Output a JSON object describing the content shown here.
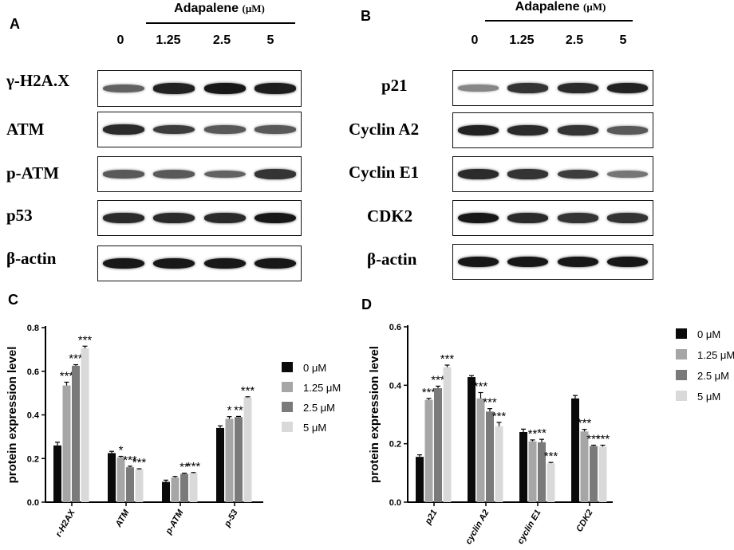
{
  "figure": {
    "panel_a": {
      "letter": "A",
      "treatment": "Adapalene",
      "unit": "(μM)",
      "concentrations": [
        "0",
        "1.25",
        "2.5",
        "5"
      ],
      "rows": [
        {
          "label": "γ-H2A.X",
          "intensity": [
            0.55,
            0.9,
            0.95,
            0.92
          ]
        },
        {
          "label": "ATM",
          "intensity": [
            0.85,
            0.75,
            0.6,
            0.6
          ]
        },
        {
          "label": "p-ATM",
          "intensity": [
            0.6,
            0.6,
            0.55,
            0.8
          ]
        },
        {
          "label": "p53",
          "intensity": [
            0.85,
            0.85,
            0.85,
            0.95
          ]
        },
        {
          "label": "β-actin",
          "intensity": [
            0.95,
            0.95,
            0.95,
            0.95
          ]
        }
      ]
    },
    "panel_b": {
      "letter": "B",
      "treatment": "Adapalene",
      "unit": "(μM)",
      "concentrations": [
        "0",
        "1.25",
        "2.5",
        "5"
      ],
      "rows": [
        {
          "label": "p21",
          "intensity": [
            0.35,
            0.8,
            0.85,
            0.9
          ]
        },
        {
          "label": "Cyclin A2",
          "intensity": [
            0.9,
            0.85,
            0.8,
            0.6
          ]
        },
        {
          "label": "Cyclin E1",
          "intensity": [
            0.85,
            0.8,
            0.75,
            0.45
          ]
        },
        {
          "label": "CDK2",
          "intensity": [
            0.95,
            0.85,
            0.8,
            0.8
          ]
        },
        {
          "label": "β-actin",
          "intensity": [
            0.95,
            0.95,
            0.95,
            0.95
          ]
        }
      ]
    }
  },
  "chart_data": [
    {
      "panel": "C",
      "type": "bar",
      "ylabel": "protein expression level",
      "ylim": [
        0,
        0.8
      ],
      "yticks": [
        "0.0",
        "0.2",
        "0.4",
        "0.6",
        "0.8"
      ],
      "categories": [
        "r-H2ΑX",
        "ATM",
        "p-ATM",
        "p-53"
      ],
      "legend_position": "right",
      "series": [
        {
          "name": "0 μM",
          "color": "#0a0a0a",
          "values": [
            0.26,
            0.225,
            0.093,
            0.34
          ],
          "errors": [
            0.015,
            0.008,
            0.008,
            0.01
          ],
          "sig": [
            "",
            "",
            "",
            ""
          ]
        },
        {
          "name": "1.25  μM",
          "color": "#a6a6a6",
          "values": [
            0.535,
            0.205,
            0.113,
            0.382
          ],
          "errors": [
            0.015,
            0.005,
            0.005,
            0.01
          ],
          "sig": [
            "***",
            "*",
            "",
            "*"
          ]
        },
        {
          "name": "2.5 μM",
          "color": "#7a7a7a",
          "values": [
            0.625,
            0.16,
            0.13,
            0.39
          ],
          "errors": [
            0.005,
            0.005,
            0.003,
            0.003
          ],
          "sig": [
            "***",
            "***",
            "**",
            "**"
          ]
        },
        {
          "name": "5  μM",
          "color": "#d9d9d9",
          "values": [
            0.705,
            0.15,
            0.133,
            0.48
          ],
          "errors": [
            0.01,
            0.003,
            0.003,
            0.003
          ],
          "sig": [
            "***",
            "***",
            "***",
            "***"
          ]
        }
      ]
    },
    {
      "panel": "D",
      "type": "bar",
      "ylabel": "protein expression level",
      "ylim": [
        0,
        0.6
      ],
      "yticks": [
        "0.0",
        "0.2",
        "0.4",
        "0.6"
      ],
      "categories": [
        "p21",
        "cyclin A2",
        "cyclin E1",
        "CDK2"
      ],
      "legend_position": "right",
      "series": [
        {
          "name": "0 μM",
          "color": "#0a0a0a",
          "values": [
            0.155,
            0.428,
            0.24,
            0.355
          ],
          "errors": [
            0.007,
            0.005,
            0.01,
            0.01
          ],
          "sig": [
            "",
            "",
            "",
            ""
          ]
        },
        {
          "name": "1.25  μM",
          "color": "#a6a6a6",
          "values": [
            0.35,
            0.355,
            0.208,
            0.242
          ],
          "errors": [
            0.005,
            0.02,
            0.005,
            0.007
          ],
          "sig": [
            "***",
            "***",
            "**",
            "***"
          ]
        },
        {
          "name": "2.5 μM",
          "color": "#7a7a7a",
          "values": [
            0.39,
            0.31,
            0.205,
            0.192
          ],
          "errors": [
            0.007,
            0.01,
            0.01,
            0.003
          ],
          "sig": [
            "***",
            "***",
            "**",
            "***"
          ]
        },
        {
          "name": "5  μM",
          "color": "#d9d9d9",
          "values": [
            0.462,
            0.26,
            0.133,
            0.19
          ],
          "errors": [
            0.007,
            0.013,
            0.003,
            0.005
          ],
          "sig": [
            "***",
            "***",
            "***",
            "***"
          ]
        }
      ]
    }
  ]
}
